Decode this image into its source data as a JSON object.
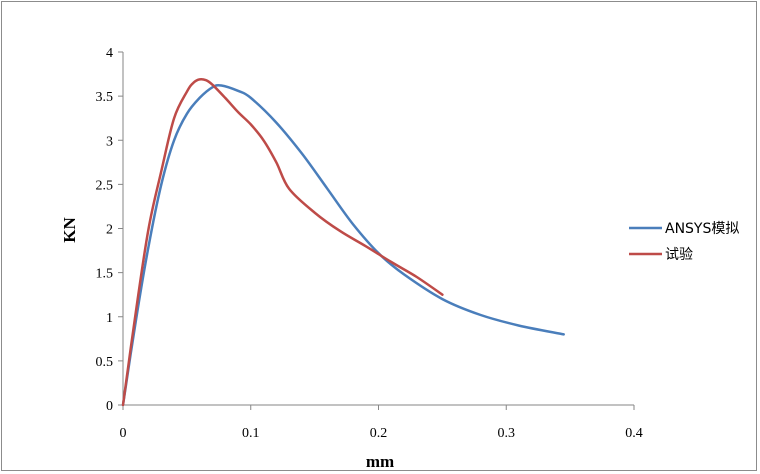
{
  "chart_data": {
    "type": "line",
    "title": "",
    "xlabel": "mm",
    "ylabel": "KN",
    "xlim": [
      0,
      0.4
    ],
    "ylim": [
      0,
      4
    ],
    "x_ticks": [
      "0",
      "0.1",
      "0.2",
      "0.3",
      "0.4"
    ],
    "y_ticks": [
      "0",
      "0.5",
      "1",
      "1.5",
      "2",
      "2.5",
      "3",
      "3.5",
      "4"
    ],
    "grid": false,
    "legend_position": "right",
    "series": [
      {
        "name": "ANSYS模拟",
        "color": "#4a7ebb",
        "x": [
          0,
          0.01,
          0.02,
          0.03,
          0.04,
          0.05,
          0.06,
          0.07,
          0.077,
          0.09,
          0.1,
          0.12,
          0.14,
          0.16,
          0.18,
          0.2,
          0.22,
          0.25,
          0.28,
          0.31,
          0.345
        ],
        "y": [
          0,
          0.95,
          1.8,
          2.5,
          3.0,
          3.3,
          3.48,
          3.6,
          3.62,
          3.56,
          3.48,
          3.2,
          2.85,
          2.45,
          2.05,
          1.72,
          1.48,
          1.2,
          1.02,
          0.9,
          0.8
        ]
      },
      {
        "name": "试验",
        "color": "#be4b48",
        "x": [
          0,
          0.01,
          0.02,
          0.03,
          0.04,
          0.05,
          0.055,
          0.06,
          0.065,
          0.07,
          0.08,
          0.09,
          0.1,
          0.11,
          0.12,
          0.13,
          0.15,
          0.17,
          0.19,
          0.21,
          0.23,
          0.25
        ],
        "y": [
          0,
          1.05,
          2.0,
          2.65,
          3.25,
          3.55,
          3.65,
          3.69,
          3.68,
          3.63,
          3.48,
          3.32,
          3.18,
          3.0,
          2.75,
          2.45,
          2.18,
          1.97,
          1.8,
          1.62,
          1.45,
          1.25
        ]
      }
    ]
  }
}
